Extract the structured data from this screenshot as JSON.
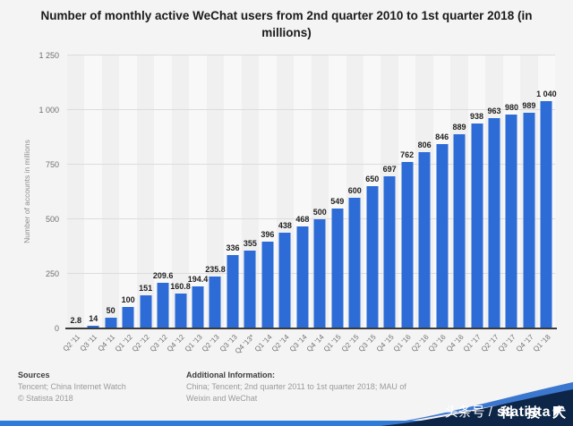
{
  "title": "Number of monthly active WeChat users from 2nd quarter 2010 to 1st quarter 2018 (in millions)",
  "chart_data": {
    "type": "bar",
    "title": "Number of monthly active WeChat users from 2nd quarter 2010 to 1st quarter 2018 (in millions)",
    "ylabel": "Number of accounts in millions",
    "xlabel": "",
    "ylim": [
      0,
      1250
    ],
    "yticks": [
      0,
      250,
      500,
      750,
      1000,
      1250
    ],
    "ytick_labels": [
      "0",
      "250",
      "500",
      "750",
      "1 000",
      "1 250"
    ],
    "grid": true,
    "bar_color": "#2d6cd6",
    "categories": [
      "Q2 '11",
      "Q3 '11",
      "Q4 '11",
      "Q1 '12",
      "Q2 '12",
      "Q3 '12",
      "Q4 '12",
      "Q1 '13",
      "Q2 '13",
      "Q3 '13",
      "Q4 '13*",
      "Q1 '14",
      "Q2 '14",
      "Q3 '14",
      "Q4 '14",
      "Q1 '15",
      "Q2 '15",
      "Q3 '15",
      "Q4 '15",
      "Q1 '16",
      "Q2 '16",
      "Q3 '16",
      "Q4 '16",
      "Q1 '17",
      "Q2 '17",
      "Q3 '17",
      "Q4 '17",
      "Q1 '18"
    ],
    "values": [
      2.8,
      14,
      50,
      100,
      151,
      209.6,
      160.8,
      194.4,
      235.8,
      336,
      355,
      396,
      438,
      468,
      500,
      549,
      600,
      650,
      697,
      762,
      806,
      846,
      889,
      938,
      963,
      980,
      989,
      1040
    ],
    "value_labels": [
      "2.8",
      "14",
      "50",
      "100",
      "151",
      "209.6",
      "160.8",
      "194.4",
      "235.8",
      "336",
      "355",
      "396",
      "438",
      "468",
      "500",
      "549",
      "600",
      "650",
      "697",
      "762",
      "806",
      "846",
      "889",
      "938",
      "963",
      "980",
      "989",
      "1 040"
    ]
  },
  "footer": {
    "sources_title": "Sources",
    "sources_line": "Tencent; China Internet Watch",
    "copyright": "© Statista 2018",
    "additional_title": "Additional Information:",
    "additional_line1": "China; Tencent; 2nd quarter 2011 to 1st quarter 2018; MAU of",
    "additional_line2": "Weixin and WeChat"
  },
  "watermark": {
    "prefix": "头条号 /",
    "brand": "statista",
    "overlay": "科技犬"
  },
  "colors": {
    "page_background": "#f4f4f4",
    "bar": "#2d6cd6",
    "accent_strip": "#2e7cd9",
    "wave_navy": "#0d2547",
    "wave_accent": "#3c77cf",
    "gridline": "#dcdcdc",
    "stripe_dark": "#f0f0f1",
    "stripe_light": "#f8f8f9"
  }
}
